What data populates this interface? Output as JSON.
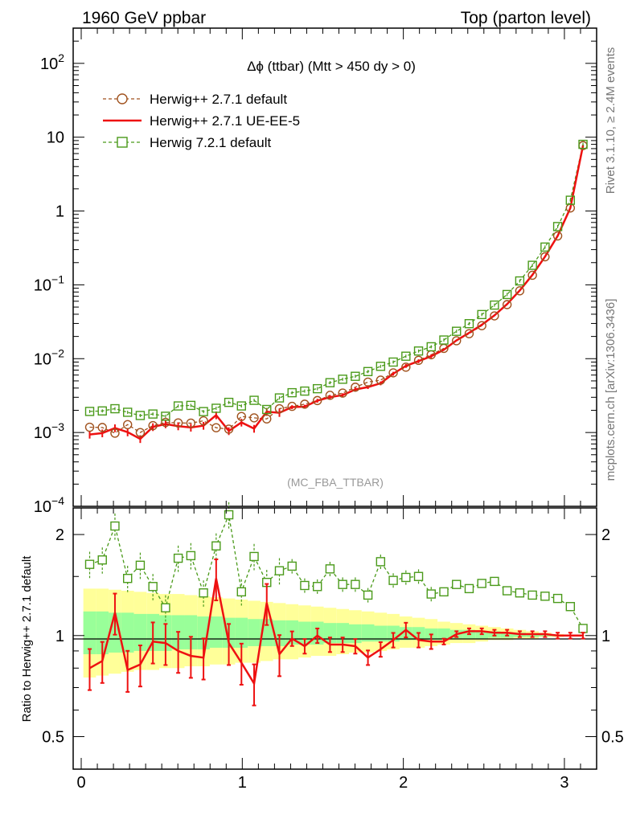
{
  "header": {
    "left": "1960 GeV ppbar",
    "right": "Top (parton level)"
  },
  "side_labels": {
    "rivet": "Rivet 3.1.10, ≥ 2.4M events",
    "mcplots": "mcplots.cern.ch [arXiv:1306.3436]"
  },
  "watermark": "(MC_FBA_TTBAR)",
  "colors": {
    "herwig_default": "#a0521e",
    "herwig_ueee5": "#ee1111",
    "herwig7": "#4a9a1a",
    "band_outer": "#ffff99",
    "band_inner": "#99ff99"
  },
  "chart_data": [
    {
      "type": "line",
      "title": "Δϕ (ttbar) (Mtt > 450 dy > 0)",
      "xlabel": "",
      "ylabel": "",
      "yscale": "log",
      "xlim": [
        -0.05,
        3.2
      ],
      "ylim": [
        0.0001,
        300
      ],
      "y_ticks": [
        {
          "value": 0.0001,
          "label": "10",
          "exp": "−4"
        },
        {
          "value": 0.001,
          "label": "10",
          "exp": "−3"
        },
        {
          "value": 0.01,
          "label": "10",
          "exp": "−2"
        },
        {
          "value": 0.1,
          "label": "10",
          "exp": "−1"
        },
        {
          "value": 1,
          "label": "1",
          "exp": ""
        },
        {
          "value": 10,
          "label": "10",
          "exp": ""
        },
        {
          "value": 100,
          "label": "10",
          "exp": "2"
        }
      ],
      "legend_position": "top-left",
      "x": [
        0.0524,
        0.1309,
        0.2094,
        0.288,
        0.3665,
        0.4451,
        0.5236,
        0.6021,
        0.6807,
        0.7592,
        0.8378,
        0.9163,
        0.9948,
        1.0734,
        1.1519,
        1.2305,
        1.309,
        1.3875,
        1.4661,
        1.5446,
        1.6232,
        1.7017,
        1.7802,
        1.8588,
        1.9373,
        2.0159,
        2.0944,
        2.1729,
        2.2515,
        2.33,
        2.4086,
        2.4871,
        2.5656,
        2.6442,
        2.7227,
        2.8013,
        2.8798,
        2.9583,
        3.0369,
        3.1154
      ],
      "series": [
        {
          "name": "Herwig++ 2.7.1 default",
          "style": "dashed-circle",
          "values": [
            0.00118,
            0.00117,
            0.00098,
            0.00128,
            0.001,
            0.00124,
            0.00137,
            0.00135,
            0.00134,
            0.00144,
            0.00116,
            0.00111,
            0.00165,
            0.00158,
            0.00153,
            0.0021,
            0.00226,
            0.00242,
            0.00271,
            0.00319,
            0.00342,
            0.00411,
            0.00482,
            0.00512,
            0.00643,
            0.00768,
            0.0095,
            0.0113,
            0.0138,
            0.0175,
            0.0218,
            0.028,
            0.038,
            0.054,
            0.083,
            0.135,
            0.24,
            0.46,
            1.1,
            7.7
          ]
        },
        {
          "name": "Herwig++ 2.7.1 UE-EE-5",
          "style": "solid-errorbar",
          "values": [
            0.00094,
            0.00098,
            0.00115,
            0.00101,
            0.00082,
            0.00119,
            0.0013,
            0.00122,
            0.00117,
            0.00124,
            0.00172,
            0.00105,
            0.00137,
            0.00113,
            0.00191,
            0.00185,
            0.00221,
            0.00224,
            0.0027,
            0.00301,
            0.00321,
            0.00383,
            0.00413,
            0.00464,
            0.00626,
            0.00799,
            0.00925,
            0.0108,
            0.0132,
            0.0177,
            0.0224,
            0.0288,
            0.0386,
            0.055,
            0.084,
            0.136,
            0.242,
            0.462,
            1.1,
            7.72
          ]
        },
        {
          "name": "Herwig 7.2.1 default",
          "style": "dashed-square",
          "values": [
            0.00193,
            0.00196,
            0.0021,
            0.00188,
            0.0017,
            0.00178,
            0.00166,
            0.00229,
            0.00233,
            0.00192,
            0.00213,
            0.00256,
            0.00229,
            0.00273,
            0.00205,
            0.00294,
            0.00346,
            0.00364,
            0.00392,
            0.00473,
            0.00527,
            0.00577,
            0.00669,
            0.00788,
            0.009,
            0.0108,
            0.0127,
            0.0145,
            0.0179,
            0.0235,
            0.0298,
            0.0396,
            0.0532,
            0.074,
            0.113,
            0.184,
            0.325,
            0.616,
            1.4,
            8.0
          ]
        }
      ]
    },
    {
      "type": "line",
      "title": "",
      "xlabel": "",
      "ylabel": "Ratio to Herwig++ 2.7.1 default",
      "yscale": "log",
      "xlim": [
        -0.05,
        3.2
      ],
      "ylim": [
        0.4,
        2.4
      ],
      "x_ticks": [
        0,
        1,
        2,
        3
      ],
      "y_ticks": [
        0.5,
        1,
        2
      ],
      "reference_line": 1,
      "x": [
        0.0524,
        0.1309,
        0.2094,
        0.288,
        0.3665,
        0.4451,
        0.5236,
        0.6021,
        0.6807,
        0.7592,
        0.8378,
        0.9163,
        0.9948,
        1.0734,
        1.1519,
        1.2305,
        1.309,
        1.3875,
        1.4661,
        1.5446,
        1.6232,
        1.7017,
        1.7802,
        1.8588,
        1.9373,
        2.0159,
        2.0944,
        2.1729,
        2.2515,
        2.33,
        2.4086,
        2.4871,
        2.5656,
        2.6442,
        2.7227,
        2.8013,
        2.8798,
        2.9583,
        3.0369,
        3.1154
      ],
      "bands": {
        "outer_lower": [
          0.75,
          0.76,
          0.77,
          0.78,
          0.79,
          0.79,
          0.8,
          0.8,
          0.81,
          0.81,
          0.82,
          0.82,
          0.83,
          0.83,
          0.84,
          0.85,
          0.85,
          0.86,
          0.87,
          0.87,
          0.88,
          0.89,
          0.89,
          0.9,
          0.91,
          0.92,
          0.92,
          0.93,
          0.94,
          0.95,
          0.95,
          0.96,
          0.97,
          0.97,
          0.98,
          0.98,
          0.99,
          0.99,
          0.995,
          0.998
        ],
        "outer_upper": [
          1.38,
          1.38,
          1.37,
          1.36,
          1.35,
          1.34,
          1.33,
          1.33,
          1.32,
          1.31,
          1.3,
          1.29,
          1.28,
          1.27,
          1.26,
          1.25,
          1.24,
          1.23,
          1.22,
          1.21,
          1.2,
          1.19,
          1.18,
          1.17,
          1.16,
          1.14,
          1.13,
          1.12,
          1.1,
          1.09,
          1.08,
          1.07,
          1.06,
          1.05,
          1.04,
          1.03,
          1.02,
          1.01,
          1.005,
          1.002
        ],
        "inner_lower": [
          0.88,
          0.88,
          0.89,
          0.89,
          0.9,
          0.9,
          0.9,
          0.91,
          0.91,
          0.91,
          0.92,
          0.92,
          0.92,
          0.93,
          0.93,
          0.93,
          0.94,
          0.94,
          0.94,
          0.95,
          0.95,
          0.95,
          0.96,
          0.96,
          0.96,
          0.97,
          0.97,
          0.97,
          0.97,
          0.98,
          0.98,
          0.98,
          0.985,
          0.985,
          0.99,
          0.99,
          0.995,
          0.995,
          0.998,
          0.999
        ],
        "inner_upper": [
          1.18,
          1.18,
          1.17,
          1.17,
          1.16,
          1.16,
          1.15,
          1.15,
          1.15,
          1.14,
          1.14,
          1.13,
          1.13,
          1.12,
          1.12,
          1.11,
          1.11,
          1.1,
          1.1,
          1.09,
          1.09,
          1.08,
          1.08,
          1.07,
          1.07,
          1.06,
          1.06,
          1.05,
          1.05,
          1.04,
          1.04,
          1.03,
          1.03,
          1.02,
          1.02,
          1.015,
          1.01,
          1.007,
          1.004,
          1.002
        ]
      },
      "series": [
        {
          "name": "Herwig 7.2.1 default",
          "style": "dashed-square",
          "values": [
            1.63,
            1.68,
            2.12,
            1.48,
            1.62,
            1.4,
            1.21,
            1.7,
            1.73,
            1.34,
            1.85,
            2.29,
            1.35,
            1.72,
            1.44,
            1.56,
            1.61,
            1.41,
            1.4,
            1.58,
            1.42,
            1.42,
            1.32,
            1.66,
            1.46,
            1.49,
            1.5,
            1.33,
            1.35,
            1.42,
            1.38,
            1.43,
            1.45,
            1.36,
            1.34,
            1.32,
            1.31,
            1.29,
            1.22,
            1.05
          ]
        },
        {
          "name": "Herwig++ 2.7.1 UE-EE-5",
          "style": "solid-errorbar",
          "values": [
            0.8,
            0.84,
            1.17,
            0.79,
            0.82,
            0.96,
            0.95,
            0.9,
            0.87,
            0.86,
            1.48,
            0.95,
            0.83,
            0.72,
            1.25,
            0.88,
            0.98,
            0.93,
            1.0,
            0.94,
            0.94,
            0.93,
            0.86,
            0.91,
            0.97,
            1.04,
            0.97,
            0.96,
            0.96,
            1.01,
            1.03,
            1.03,
            1.02,
            1.02,
            1.01,
            1.01,
            1.01,
            1.0,
            1.0,
            1.0
          ]
        }
      ]
    }
  ]
}
